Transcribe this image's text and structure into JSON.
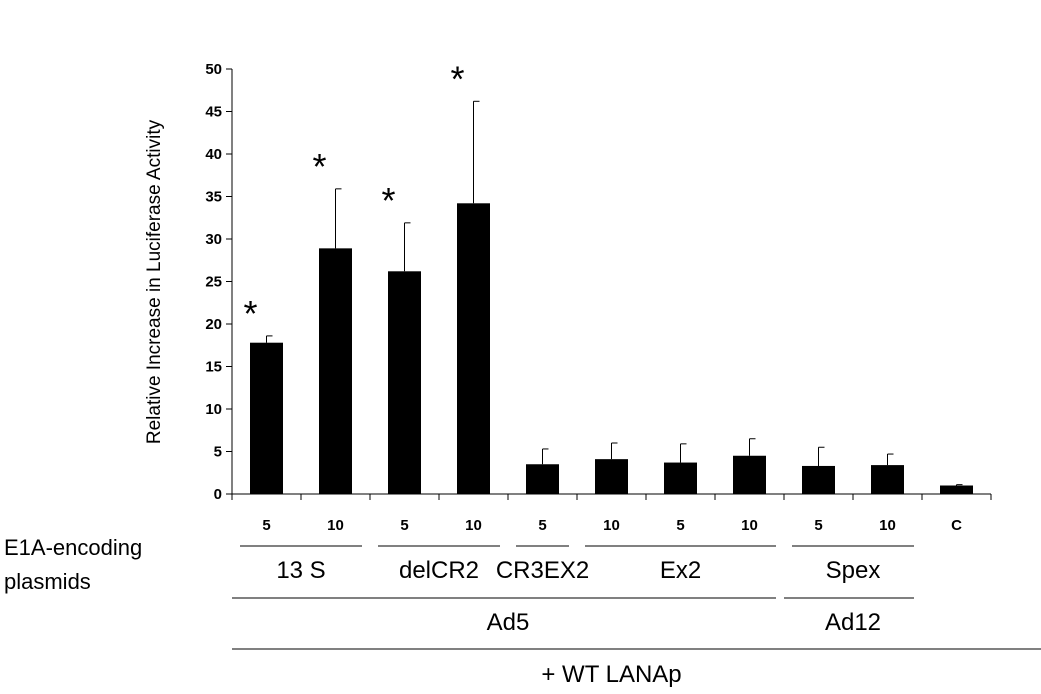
{
  "chart_data": {
    "type": "bar",
    "title": "",
    "ylabel": "Relative Increase in Luciferase Activity",
    "ylim": [
      0,
      50
    ],
    "yticks": [
      0,
      5,
      10,
      15,
      20,
      25,
      30,
      35,
      40,
      45,
      50
    ],
    "categories": [
      "5",
      "10",
      "5",
      "10",
      "5",
      "10",
      "5",
      "10",
      "5",
      "10",
      "C"
    ],
    "values": [
      17.8,
      28.9,
      26.2,
      34.2,
      3.5,
      4.1,
      3.7,
      4.5,
      3.3,
      3.4,
      1.0
    ],
    "errors": [
      0.8,
      7.0,
      5.7,
      12.0,
      1.8,
      1.9,
      2.2,
      2.0,
      2.2,
      1.3,
      0.1
    ],
    "significant": [
      true,
      true,
      true,
      true,
      false,
      false,
      false,
      false,
      false,
      false,
      false
    ],
    "significance_marker": "*",
    "bar_color": "#000000",
    "side_label": [
      "E1A-encoding",
      "plasmids"
    ],
    "group_labels": [
      {
        "label": "13 S",
        "from": 0,
        "to": 1,
        "level": 1
      },
      {
        "label": "delCR2",
        "from": 2,
        "to": 3,
        "level": 1
      },
      {
        "label": "CR3EX2",
        "from": 4,
        "to": 4,
        "level": 1
      },
      {
        "label": "Ex2",
        "from": 5,
        "to": 7,
        "level": 1
      },
      {
        "label": "Spex",
        "from": 8,
        "to": 9,
        "level": 1
      },
      {
        "label": "Ad5",
        "from": 0,
        "to": 7,
        "level": 2
      },
      {
        "label": "Ad12",
        "from": 8,
        "to": 9,
        "level": 2
      },
      {
        "label": "+ WT LANAp",
        "from": 0,
        "to": 10,
        "level": 3
      }
    ]
  }
}
